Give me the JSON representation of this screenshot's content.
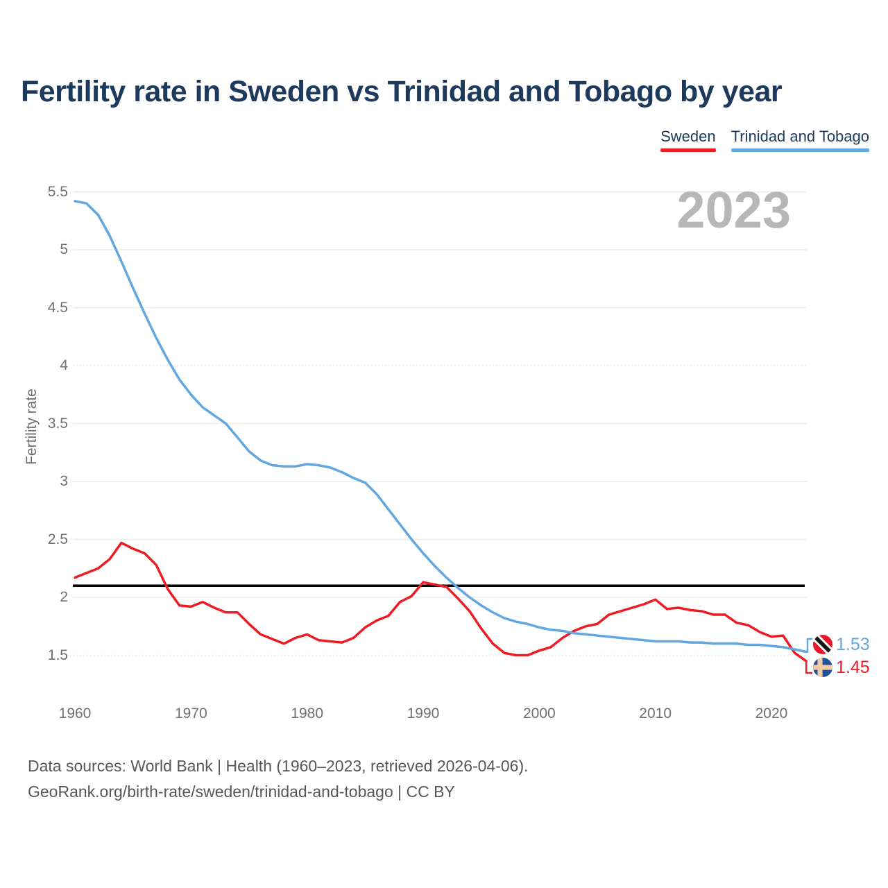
{
  "title": "Fertility rate in Sweden vs Trinidad and Tobago by year",
  "watermark": "2023",
  "legend": [
    {
      "label": "Sweden",
      "color": "#ed1c24"
    },
    {
      "label": "Trinidad and Tobago",
      "color": "#63a7e0"
    }
  ],
  "colors": {
    "sweden_line": "#ed1c24",
    "trinidad_line": "#63a7e0",
    "title_text": "#1d3a5c",
    "axis_text": "#6f6f6f",
    "watermark_text": "#b7b7b7",
    "reference_line": "#000000",
    "gridline": "#ebebeb"
  },
  "chart_data": {
    "type": "line",
    "title": "Fertility rate in Sweden vs Trinidad and Tobago by year",
    "xlabel": "",
    "ylabel": "Fertility rate",
    "x": [
      1960,
      1961,
      1962,
      1963,
      1964,
      1965,
      1966,
      1967,
      1968,
      1969,
      1970,
      1971,
      1972,
      1973,
      1974,
      1975,
      1976,
      1977,
      1978,
      1979,
      1980,
      1981,
      1982,
      1983,
      1984,
      1985,
      1986,
      1987,
      1988,
      1989,
      1990,
      1991,
      1992,
      1993,
      1994,
      1995,
      1996,
      1997,
      1998,
      1999,
      2000,
      2001,
      2002,
      2003,
      2004,
      2005,
      2006,
      2007,
      2008,
      2009,
      2010,
      2011,
      2012,
      2013,
      2014,
      2015,
      2016,
      2017,
      2018,
      2019,
      2020,
      2021,
      2022,
      2023
    ],
    "series": [
      {
        "name": "Sweden",
        "color": "#ed1c24",
        "values": [
          2.17,
          2.21,
          2.25,
          2.33,
          2.47,
          2.42,
          2.38,
          2.28,
          2.07,
          1.93,
          1.92,
          1.96,
          1.91,
          1.87,
          1.87,
          1.77,
          1.68,
          1.64,
          1.6,
          1.65,
          1.68,
          1.63,
          1.62,
          1.61,
          1.65,
          1.74,
          1.8,
          1.84,
          1.96,
          2.01,
          2.13,
          2.11,
          2.09,
          1.99,
          1.88,
          1.73,
          1.6,
          1.52,
          1.5,
          1.5,
          1.54,
          1.57,
          1.65,
          1.71,
          1.75,
          1.77,
          1.85,
          1.88,
          1.91,
          1.94,
          1.98,
          1.9,
          1.91,
          1.89,
          1.88,
          1.85,
          1.85,
          1.78,
          1.76,
          1.7,
          1.66,
          1.67,
          1.52,
          1.45
        ]
      },
      {
        "name": "Trinidad and Tobago",
        "color": "#63a7e0",
        "values": [
          5.42,
          5.4,
          5.3,
          5.12,
          4.9,
          4.67,
          4.45,
          4.24,
          4.05,
          3.88,
          3.75,
          3.64,
          3.57,
          3.5,
          3.38,
          3.26,
          3.18,
          3.14,
          3.13,
          3.13,
          3.15,
          3.14,
          3.12,
          3.08,
          3.03,
          2.99,
          2.89,
          2.76,
          2.63,
          2.5,
          2.38,
          2.27,
          2.17,
          2.08,
          2.0,
          1.93,
          1.87,
          1.82,
          1.79,
          1.77,
          1.74,
          1.72,
          1.71,
          1.69,
          1.68,
          1.67,
          1.66,
          1.65,
          1.64,
          1.63,
          1.62,
          1.62,
          1.62,
          1.61,
          1.61,
          1.6,
          1.6,
          1.6,
          1.59,
          1.59,
          1.58,
          1.57,
          1.55,
          1.53
        ]
      }
    ],
    "xticks": [
      "1960",
      "1970",
      "1980",
      "1990",
      "2000",
      "2010",
      "2020"
    ],
    "yticks": [
      "5.5",
      "5",
      "4.5",
      "4",
      "3.5",
      "3",
      "2.5",
      "2",
      "1.5"
    ],
    "ylim": [
      1.5,
      5.5
    ],
    "xlim": [
      1960,
      2023
    ],
    "grid": "horizontal",
    "legend_position": "top-right",
    "reference_line": {
      "value": 2.1,
      "color": "#000000"
    },
    "end_labels": [
      {
        "series": "Trinidad and Tobago",
        "value": "1.53",
        "flag": "trinidad-and-tobago-flag",
        "color": "#63a7e0"
      },
      {
        "series": "Sweden",
        "value": "1.45",
        "flag": "sweden-flag",
        "color": "#ed1c24"
      }
    ]
  },
  "footer": {
    "line1": "Data sources: World Bank | Health (1960–2023, retrieved 2026-04-06).",
    "line2": "GeoRank.org/birth-rate/sweden/trinidad-and-tobago | CC BY"
  }
}
